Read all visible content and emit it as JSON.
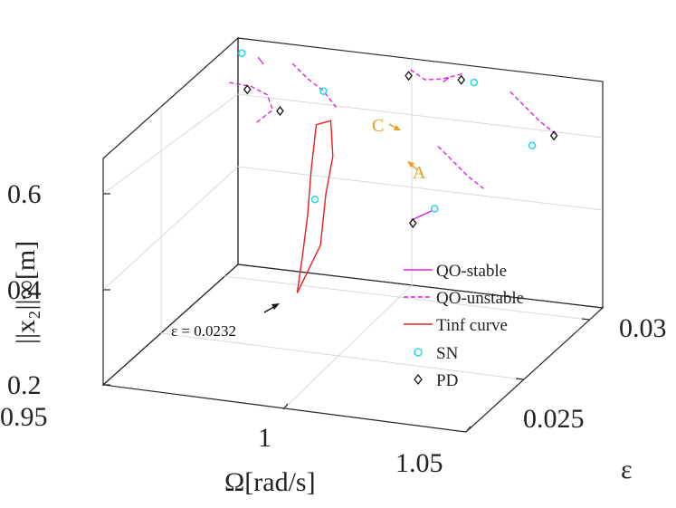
{
  "chart_data": {
    "type": "line3d",
    "x_axis": {
      "label": "Ω[rad/s]",
      "range": [
        0.95,
        1.05
      ],
      "ticks": [
        "0.95",
        "1",
        "1.05"
      ]
    },
    "y_axis": {
      "label": "ε",
      "range": [
        0.0225,
        0.03
      ],
      "ticks": [
        "0.025",
        "0.03"
      ]
    },
    "z_axis": {
      "label": "||x₂||∞[m]",
      "range": [
        0.2,
        0.7
      ],
      "ticks": [
        "0.2",
        "0.4",
        "0.6"
      ]
    },
    "grid": true,
    "legend_position": "inside-right",
    "legend": [
      {
        "name": "QO-stable",
        "style": "solid",
        "color": "#e020e0"
      },
      {
        "name": "QO-unstable",
        "style": "dashed",
        "color": "#e020e0"
      },
      {
        "name": "Tinf curve",
        "style": "solid",
        "color": "#ee1c1c"
      },
      {
        "name": "SN",
        "marker": "circle",
        "color": "#1ed8e8"
      },
      {
        "name": "PD",
        "marker": "diamond",
        "color": "#111111"
      }
    ],
    "annotations": [
      {
        "text": "ε = 0.0232",
        "target": "Tinf curve start"
      },
      {
        "text": "C",
        "color": "#e8a020"
      },
      {
        "text": "A",
        "color": "#e8a020"
      }
    ],
    "series": {
      "tinf_curve": [
        [
          1.0,
          0.0232,
          0.43
        ],
        [
          0.995,
          0.0245,
          0.46
        ],
        [
          0.99,
          0.0258,
          0.5
        ],
        [
          0.985,
          0.027,
          0.55
        ],
        [
          0.98,
          0.0283,
          0.6
        ],
        [
          0.983,
          0.0285,
          0.605
        ],
        [
          0.99,
          0.0272,
          0.58
        ],
        [
          0.995,
          0.0258,
          0.55
        ],
        [
          1.0,
          0.0245,
          0.49
        ],
        [
          1.0,
          0.0232,
          0.43
        ]
      ],
      "qo_branches_unstable": [
        [
          [
            0.955,
            0.0285,
            0.66
          ],
          [
            0.96,
            0.0287,
            0.65
          ],
          [
            0.965,
            0.0286,
            0.64
          ],
          [
            0.968,
            0.0283,
            0.62
          ],
          [
            0.965,
            0.028,
            0.6
          ]
        ],
        [
          [
            0.97,
            0.029,
            0.7
          ],
          [
            0.975,
            0.0288,
            0.68
          ],
          [
            0.98,
            0.0287,
            0.66
          ],
          [
            0.985,
            0.0284,
            0.64
          ]
        ],
        [
          [
            1.0,
            0.0295,
            0.7
          ],
          [
            1.005,
            0.0293,
            0.69
          ],
          [
            1.01,
            0.0292,
            0.7
          ],
          [
            1.015,
            0.0294,
            0.71
          ]
        ],
        [
          [
            1.02,
            0.027,
            0.64
          ],
          [
            1.025,
            0.0268,
            0.62
          ],
          [
            1.03,
            0.0266,
            0.6
          ],
          [
            1.035,
            0.0265,
            0.58
          ]
        ],
        [
          [
            1.03,
            0.029,
            0.7
          ],
          [
            1.035,
            0.0288,
            0.68
          ],
          [
            1.04,
            0.0286,
            0.66
          ],
          [
            1.045,
            0.0285,
            0.64
          ]
        ]
      ],
      "qo_branches_stable": [
        [
          [
            0.96,
            0.0291,
            0.7
          ],
          [
            0.962,
            0.029,
            0.69
          ]
        ],
        [
          [
            1.01,
            0.0293,
            0.69
          ],
          [
            1.012,
            0.0292,
            0.705
          ]
        ],
        [
          [
            1.02,
            0.0255,
            0.53
          ],
          [
            1.025,
            0.0257,
            0.55
          ]
        ]
      ],
      "sn_points": [
        [
          0.955,
          0.0292,
          0.7
        ],
        [
          0.98,
          0.0287,
          0.66
        ],
        [
          0.99,
          0.0262,
          0.52
        ],
        [
          1.025,
          0.0258,
          0.55
        ],
        [
          1.02,
          0.029,
          0.71
        ],
        [
          1.04,
          0.0282,
          0.62
        ]
      ],
      "pd_points": [
        [
          0.96,
          0.0285,
          0.65
        ],
        [
          0.97,
          0.0283,
          0.62
        ],
        [
          1.0,
          0.0294,
          0.69
        ],
        [
          1.015,
          0.0293,
          0.7
        ],
        [
          1.02,
          0.0256,
          0.52
        ],
        [
          1.045,
          0.0284,
          0.64
        ]
      ]
    }
  }
}
